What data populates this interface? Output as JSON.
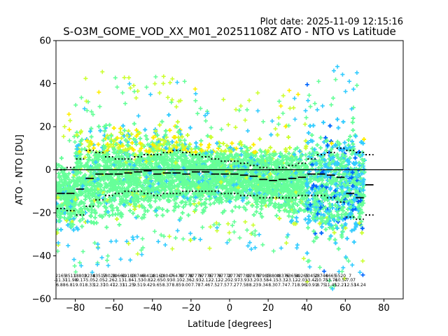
{
  "header": {
    "plot_date": "Plot date: 2025-11-09 12:15:16",
    "title": "S-O3M_GOME_VOD_XX_M01_20251108Z ATO - NTO vs Latitude"
  },
  "chart_data": {
    "type": "scatter",
    "title": "S-O3M_GOME_VOD_XX_M01_20251108Z ATO - NTO vs Latitude",
    "xlabel": "Latitude [degrees]",
    "ylabel": "ATO - NTO [DU]",
    "xlim": [
      -90,
      90
    ],
    "ylim": [
      -60,
      60
    ],
    "x_ticks": [
      -80,
      -60,
      -40,
      -20,
      0,
      20,
      40,
      60,
      80
    ],
    "y_ticks": [
      -60,
      -40,
      -20,
      0,
      20,
      40,
      60
    ],
    "zero_line": 0,
    "colors": {
      "scatter_low": "#66ff99",
      "scatter_mid": "#33ccff",
      "scatter_yellow": "#ffee00",
      "scatter_lime": "#ccff33",
      "scatter_blue": "#0066ff",
      "scatter_dark": "#1a1acc",
      "stats_line": "#000000"
    },
    "binned_mean": {
      "lat": [
        -87.5,
        -82.5,
        -77.5,
        -72.5,
        -67.5,
        -62.5,
        -57.5,
        -52.5,
        -47.5,
        -42.5,
        -37.5,
        -32.5,
        -27.5,
        -22.5,
        -17.5,
        -12.5,
        -7.5,
        -2.5,
        2.5,
        7.5,
        12.5,
        17.5,
        22.5,
        27.5,
        32.5,
        37.5,
        42.5,
        47.5,
        52.5,
        57.5,
        62.5,
        67.5,
        72.5
      ],
      "values": [
        -11,
        -11,
        -9,
        -4,
        -2,
        -2,
        -2,
        -1.5,
        -1,
        -0.5,
        -2,
        -1.5,
        -1.5,
        -2,
        -1,
        -1,
        -2,
        -2,
        -2,
        -2.5,
        -3,
        -4.5,
        -5,
        -4.5,
        -4,
        -3.5,
        -2,
        -2,
        -2.5,
        -3.5,
        -11,
        -13,
        -7
      ]
    },
    "binned_upper": {
      "lat": [
        -87.5,
        -82.5,
        -77.5,
        -72.5,
        -67.5,
        -62.5,
        -57.5,
        -52.5,
        -47.5,
        -42.5,
        -37.5,
        -32.5,
        -27.5,
        -22.5,
        -17.5,
        -12.5,
        -7.5,
        -2.5,
        2.5,
        7.5,
        12.5,
        17.5,
        22.5,
        27.5,
        32.5,
        37.5,
        42.5,
        47.5,
        52.5,
        57.5,
        62.5,
        67.5,
        72.5
      ],
      "values": [
        0,
        1,
        5,
        9,
        8,
        6,
        5,
        5,
        6,
        7,
        7,
        8,
        9,
        8,
        7,
        6,
        5,
        4,
        4,
        3,
        2,
        1,
        0,
        1,
        2,
        3,
        5,
        7,
        8,
        10,
        9,
        8,
        7
      ]
    },
    "binned_lower": {
      "lat": [
        -87.5,
        -82.5,
        -77.5,
        -72.5,
        -67.5,
        -62.5,
        -57.5,
        -52.5,
        -47.5,
        -42.5,
        -37.5,
        -32.5,
        -27.5,
        -22.5,
        -17.5,
        -12.5,
        -7.5,
        -2.5,
        2.5,
        7.5,
        12.5,
        17.5,
        22.5,
        27.5,
        32.5,
        37.5,
        42.5,
        47.5,
        52.5,
        57.5,
        62.5,
        67.5,
        72.5
      ],
      "values": [
        -18,
        -19,
        -21,
        -17,
        -14,
        -12,
        -11,
        -10,
        -10,
        -11,
        -12,
        -11,
        -11,
        -10,
        -10,
        -10,
        -10,
        -11,
        -11,
        -12,
        -12,
        -13,
        -13,
        -13,
        -13,
        -12,
        -12,
        -12,
        -13,
        -15,
        -22,
        -23,
        -21
      ]
    },
    "bin_stats": {
      "lat": [
        -87.5,
        -82.5,
        -77.5,
        -72.5,
        -67.5,
        -62.5,
        -57.5,
        -52.5,
        -47.5,
        -42.5,
        -37.5,
        -32.5,
        -27.5,
        -22.5,
        -17.5,
        -12.5,
        -7.5,
        -2.5,
        2.5,
        7.5,
        12.5,
        17.5,
        22.5,
        27.5,
        32.5,
        37.5,
        42.5,
        47.5,
        52.5,
        57.5,
        62.5,
        67.5,
        72.5
      ],
      "count": [
        "2165",
        "8513",
        "18802",
        "9234",
        "83517",
        "58028",
        "39660",
        "69183",
        "18746",
        "48414",
        "18160",
        "18047",
        "76479",
        "87778",
        "87776",
        "97776",
        "97776",
        "97778",
        "27777",
        "47788",
        "17879",
        "97985",
        "18804",
        "48376",
        "63654",
        "89265",
        "30450",
        "28746",
        "4665",
        "5520",
        "7",
        "",
        ""
      ],
      "mean": [
        "-11.31",
        "-11.98",
        "-9.17",
        "-5.05",
        "-2.05",
        "-2.26",
        "-2.13",
        "-1.84",
        "-1.53",
        "-0.82",
        "-2.65",
        "-0.93",
        "-0.10",
        "-2.36",
        "-2.93",
        "-2.12",
        "-2.12",
        "-2.20",
        "-2.97",
        "-3.93",
        "-3.20",
        "-3.58",
        "-4.15",
        "-3.32",
        "-3.12",
        "-2.03",
        "-3.42",
        "-10.75",
        "-13.76",
        "-10.57",
        "-7.07",
        "",
        ""
      ],
      "std": [
        "6.88",
        "6.81",
        "9.01",
        "8.33",
        "12.37",
        "10.47",
        "12.33",
        "11.25",
        "9.51",
        "9.42",
        "9.65",
        "8.37",
        "8.85",
        "9.00",
        "7.78",
        "7.46",
        "7.52",
        "7.57",
        "7.27",
        "7.58",
        "8.23",
        "9.34",
        "8.30",
        "7.74",
        "7.71",
        "8.96",
        "10.91",
        "8.75",
        "11.45",
        "12.21",
        "12.53",
        "14.24",
        ""
      ]
    },
    "density_bands": [
      {
        "lat_min": -90,
        "lat_max": -80,
        "y_min": -33,
        "y_max": 8
      },
      {
        "lat_min": -80,
        "lat_max": -70,
        "y_min": -36,
        "y_max": 25
      },
      {
        "lat_min": -70,
        "lat_max": -60,
        "y_min": -33,
        "y_max": 28
      },
      {
        "lat_min": -60,
        "lat_max": -50,
        "y_min": -30,
        "y_max": 26
      },
      {
        "lat_min": -50,
        "lat_max": -40,
        "y_min": -28,
        "y_max": 24
      },
      {
        "lat_min": -40,
        "lat_max": -30,
        "y_min": -27,
        "y_max": 27
      },
      {
        "lat_min": -30,
        "lat_max": -20,
        "y_min": -26,
        "y_max": 25
      },
      {
        "lat_min": -20,
        "lat_max": -10,
        "y_min": -25,
        "y_max": 20
      },
      {
        "lat_min": -10,
        "lat_max": 0,
        "y_min": -24,
        "y_max": 18
      },
      {
        "lat_min": 0,
        "lat_max": 10,
        "y_min": -24,
        "y_max": 18
      },
      {
        "lat_min": 10,
        "lat_max": 20,
        "y_min": -25,
        "y_max": 18
      },
      {
        "lat_min": 20,
        "lat_max": 30,
        "y_min": -26,
        "y_max": 17
      },
      {
        "lat_min": 30,
        "lat_max": 40,
        "y_min": -30,
        "y_max": 19
      },
      {
        "lat_min": 40,
        "lat_max": 50,
        "y_min": -42,
        "y_max": 25
      },
      {
        "lat_min": 50,
        "lat_max": 60,
        "y_min": -45,
        "y_max": 30
      },
      {
        "lat_min": 60,
        "lat_max": 70,
        "y_min": -40,
        "y_max": 28
      }
    ]
  }
}
